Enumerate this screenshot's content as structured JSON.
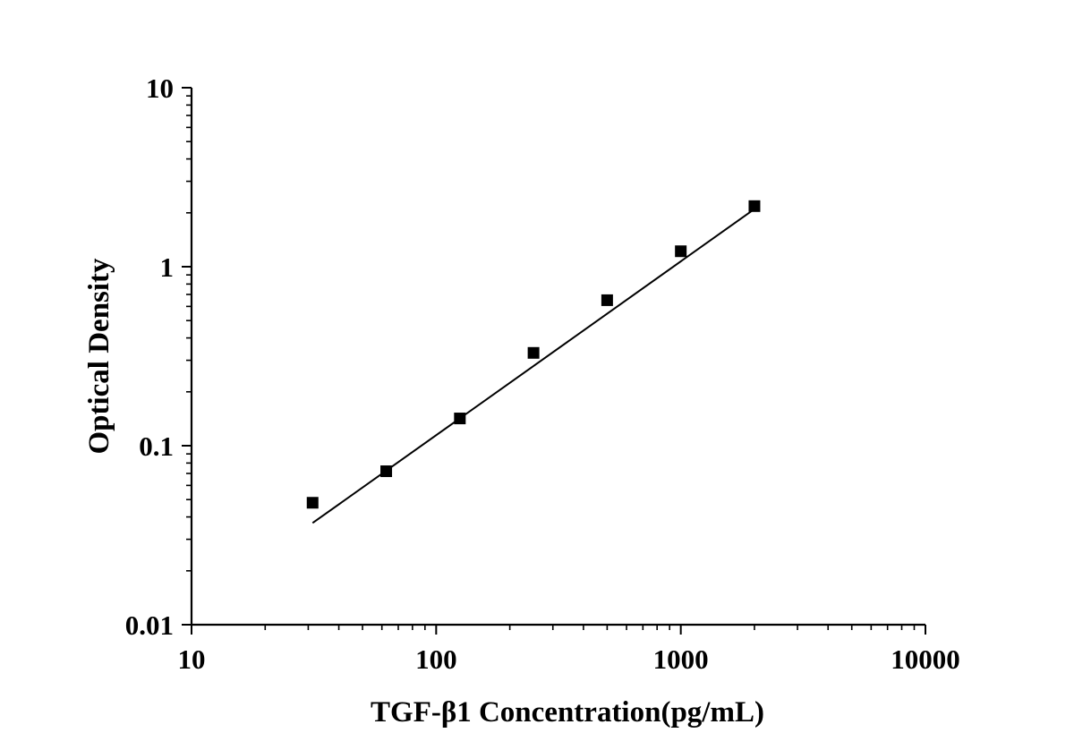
{
  "chart_data": {
    "type": "scatter",
    "title": "",
    "xlabel": "TGF-β1 Concentration(pg/mL)",
    "ylabel": "Optical Density",
    "x_scale": "log",
    "y_scale": "log",
    "xlim": [
      10,
      10000
    ],
    "ylim": [
      0.01,
      10
    ],
    "x_ticks": [
      10,
      100,
      1000,
      10000
    ],
    "x_tick_labels": [
      "10",
      "100",
      "1000",
      "10000"
    ],
    "y_ticks": [
      0.01,
      0.1,
      1,
      10
    ],
    "y_tick_labels": [
      "0.01",
      "0.1",
      "1",
      "10"
    ],
    "grid": false,
    "legend": "none",
    "series": [
      {
        "marker": "square",
        "color": "#000000",
        "x": [
          31.25,
          62.5,
          125,
          250,
          500,
          1000,
          2000
        ],
        "y": [
          0.048,
          0.072,
          0.142,
          0.33,
          0.65,
          1.22,
          2.18
        ]
      }
    ],
    "fit_line": {
      "color": "#000000",
      "x": [
        31.25,
        2000
      ],
      "y": [
        0.037,
        2.1
      ]
    }
  }
}
